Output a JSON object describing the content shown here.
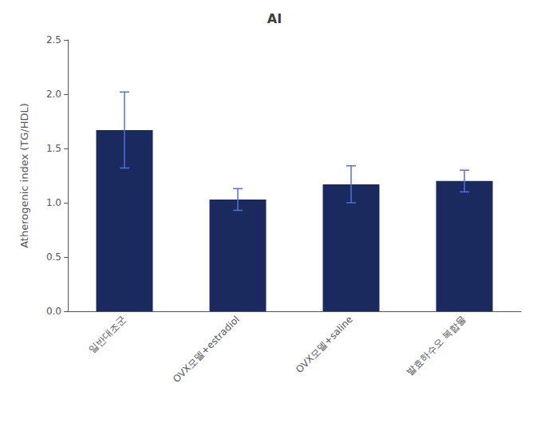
{
  "chart_data": {
    "type": "bar",
    "title": "AI",
    "ylabel": "Atherogenic index (TG/HDL)",
    "categories": [
      "일반대조군",
      "OVX모델+estradiol",
      "OVX모델+saline",
      "발효하수오 복합물"
    ],
    "values": [
      1.67,
      1.03,
      1.17,
      1.2
    ],
    "errors": [
      0.35,
      0.1,
      0.17,
      0.1
    ],
    "color": "#1a2a5e",
    "ylim": [
      0,
      2.5
    ],
    "yticks": [
      {
        "value": 0,
        "label": "0.0"
      },
      0.5,
      {
        "value": 1,
        "label": "1.0"
      },
      1.5,
      {
        "value": 2,
        "label": "2.0"
      },
      2.5
    ],
    "grid": false
  }
}
